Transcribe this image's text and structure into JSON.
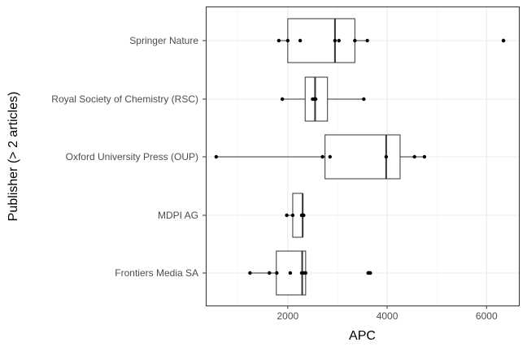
{
  "chart_data": {
    "type": "boxplot",
    "xlabel": "APC",
    "ylabel": "Publisher (> 2 articles)",
    "xlim": [
      350,
      6650
    ],
    "x_ticks": [
      2000,
      4000,
      6000
    ],
    "x_tick_labels": [
      "2000",
      "4000",
      "6000"
    ],
    "grid": true,
    "legend": "none",
    "categories": [
      "Springer Nature",
      "Royal Society of Chemistry (RSC)",
      "Oxford University Press (OUP)",
      "MDPI AG",
      "Frontiers Media SA"
    ],
    "boxes": [
      {
        "q1": 2000,
        "median": 2950,
        "q3": 3350,
        "whisker_low": 1820,
        "whisker_high": 3600
      },
      {
        "q1": 2350,
        "median": 2550,
        "q3": 2800,
        "whisker_low": 1890,
        "whisker_high": 3530
      },
      {
        "q1": 2750,
        "median": 3980,
        "q3": 4260,
        "whisker_low": 560,
        "whisker_high": 4750
      },
      {
        "q1": 2100,
        "median": 2300,
        "q3": 2300,
        "whisker_low": 1980,
        "whisker_high": 2320
      },
      {
        "q1": 1770,
        "median": 2290,
        "q3": 2360,
        "whisker_low": 1240,
        "whisker_high": 2360
      }
    ],
    "points": [
      [
        1820,
        2000,
        2250,
        2950,
        3030,
        3350,
        3600,
        6340
      ],
      [
        1890,
        2500,
        2540,
        2560,
        3530
      ],
      [
        560,
        2700,
        2850,
        3980,
        4550,
        4750
      ],
      [
        1980,
        2100,
        2280,
        2300,
        2320
      ],
      [
        1240,
        1630,
        1780,
        2050,
        2280,
        2330,
        2360,
        3620,
        3660
      ]
    ],
    "outliers": [
      [
        6340
      ],
      [],
      [],
      [],
      [
        3620,
        3660
      ]
    ]
  },
  "colors": {
    "background": "#ffffff",
    "grid_major": "#ebebeb",
    "grid_minor": "#f5f5f5",
    "panel_border": "#333333",
    "box_stroke": "#333333",
    "point": "#000000"
  }
}
